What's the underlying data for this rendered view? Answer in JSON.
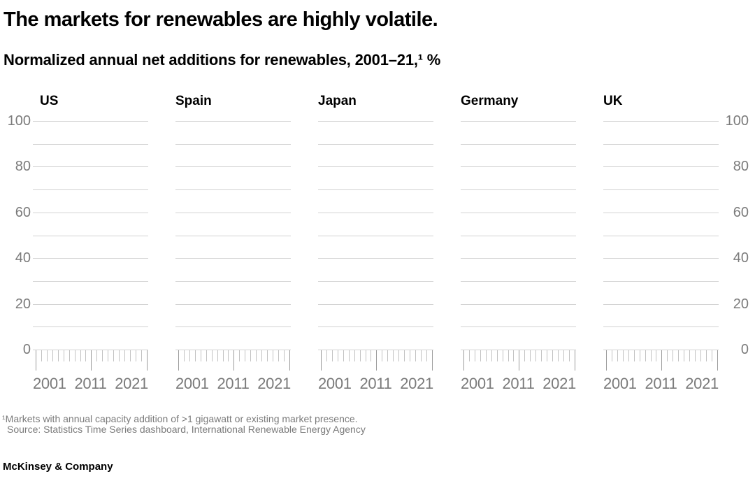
{
  "header": {
    "title": "The markets for renewables are highly volatile.",
    "subtitle": "Normalized annual net additions for renewables, 2001–21,¹ %"
  },
  "chart_data": {
    "type": "line",
    "title": "Normalized annual net additions for renewables, 2001–21, %",
    "layout": "five small-multiple panels in one row; shared y scale with tick labels on both left and right sides; horizontal gridlines on; ruler-style x tick marks below each panel",
    "panels": [
      "US",
      "Spain",
      "Japan",
      "Germany",
      "UK"
    ],
    "x": {
      "range": [
        2001,
        2021
      ],
      "tick_labels": [
        "2001",
        "2011",
        "2021"
      ],
      "minor_tick_interval_years": 1,
      "total_ticks_per_panel": 21
    },
    "y": {
      "range": [
        0,
        100
      ],
      "tick_labels": [
        "100",
        "80",
        "60",
        "40",
        "20",
        "0"
      ],
      "gridline_interval": 10,
      "minor_gridlines": [
        90,
        70,
        50,
        30,
        10
      ]
    },
    "series": [],
    "annotation": "No data series are plotted in this frame; all five panels show empty gridded axes."
  },
  "footnotes": {
    "footnote": "¹Markets with annual capacity addition of >1 gigawatt or existing market presence.",
    "source": "Source: Statistics Time Series dashboard, International Renewable Energy Agency"
  },
  "footer": {
    "brand": "McKinsey & Company"
  },
  "colors": {
    "text_black": "#000000",
    "text_gray": "#7b7b7b",
    "gridline": "#d2d2d2",
    "tick_minor": "#c2c2c2",
    "tick_major": "#9b9b9b",
    "background": "#ffffff"
  }
}
